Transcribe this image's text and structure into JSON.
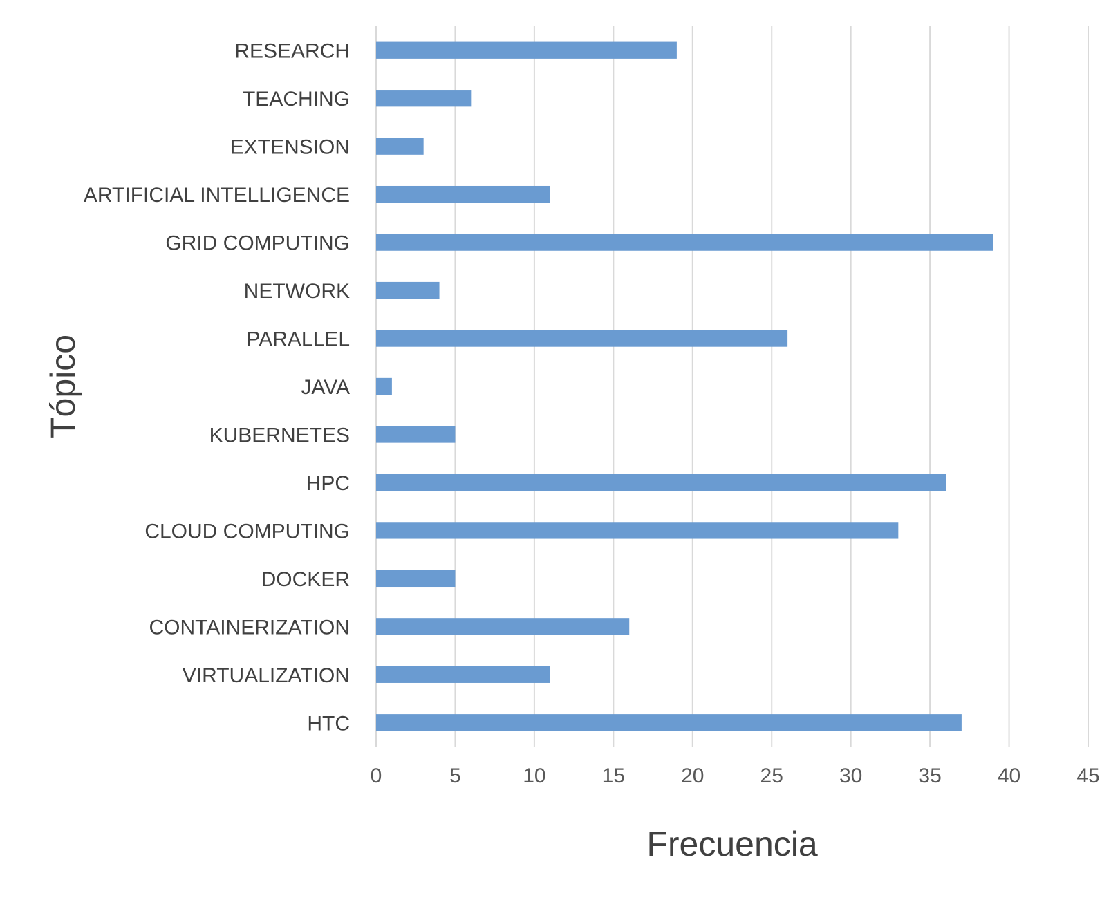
{
  "chart_data": {
    "type": "bar",
    "orientation": "horizontal",
    "categories": [
      "RESEARCH",
      "TEACHING",
      "EXTENSION",
      "ARTIFICIAL INTELLIGENCE",
      "GRID COMPUTING",
      "NETWORK",
      "PARALLEL",
      "JAVA",
      "KUBERNETES",
      "HPC",
      "CLOUD COMPUTING",
      "DOCKER",
      "CONTAINERIZATION",
      "VIRTUALIZATION",
      "HTC"
    ],
    "values": [
      19,
      6,
      3,
      11,
      39,
      4,
      26,
      1,
      5,
      36,
      33,
      5,
      16,
      11,
      37
    ],
    "xlabel": "Frecuencia",
    "ylabel": "Tópico",
    "xlim": [
      0,
      45
    ],
    "xticks": [
      0,
      5,
      10,
      15,
      20,
      25,
      30,
      35,
      40,
      45
    ],
    "grid": true,
    "legend": "none",
    "bar_color": "#6a9bd1",
    "grid_color": "#d9d9d9"
  }
}
